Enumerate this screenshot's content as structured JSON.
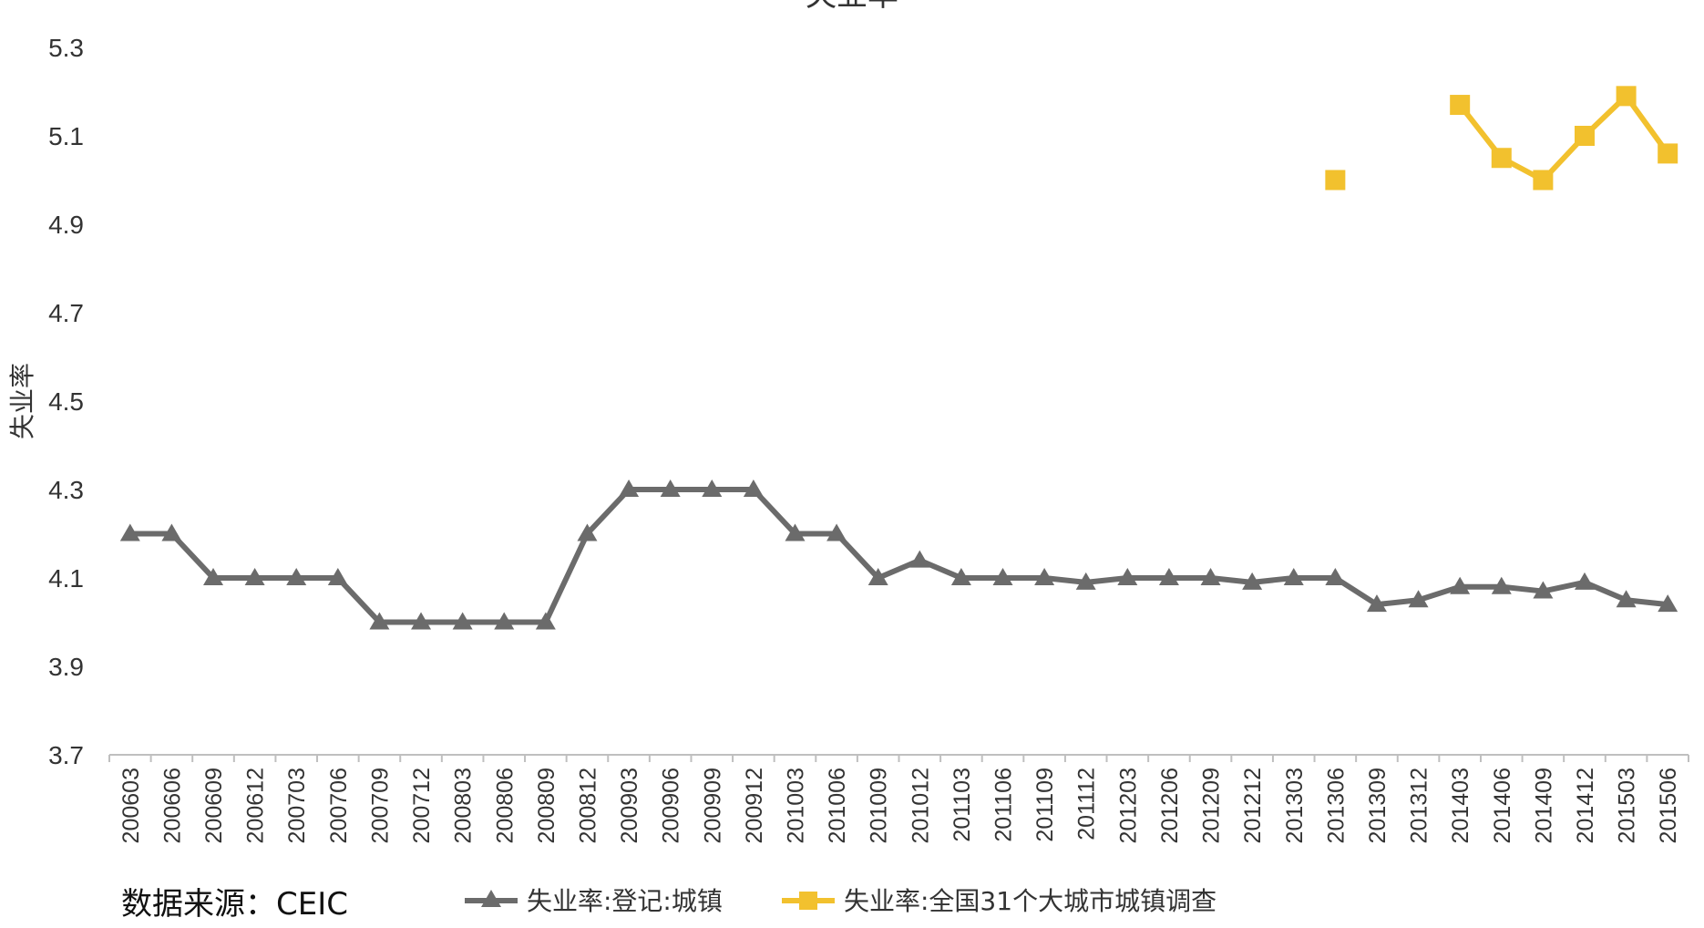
{
  "chart_data": {
    "type": "line",
    "title": "失业率",
    "ylabel": "失业率",
    "xlabel": "",
    "ylim": [
      3.7,
      5.3
    ],
    "yticks": [
      "3.7",
      "3.9",
      "4.1",
      "4.3",
      "4.5",
      "4.7",
      "4.9",
      "5.1",
      "5.3"
    ],
    "grid": false,
    "legend_position": "bottom",
    "categories": [
      "200603",
      "200606",
      "200609",
      "200612",
      "200703",
      "200706",
      "200709",
      "200712",
      "200803",
      "200806",
      "200809",
      "200812",
      "200903",
      "200906",
      "200909",
      "200912",
      "201003",
      "201006",
      "201009",
      "201012",
      "201103",
      "201106",
      "201109",
      "201112",
      "201203",
      "201206",
      "201209",
      "201212",
      "201303",
      "201306",
      "201309",
      "201312",
      "201403",
      "201406",
      "201409",
      "201412",
      "201503",
      "201506"
    ],
    "series": [
      {
        "name": "失业率:登记:城镇",
        "color": "#6b6b6b",
        "marker": "triangle",
        "values": [
          4.2,
          4.2,
          4.1,
          4.1,
          4.1,
          4.1,
          4.0,
          4.0,
          4.0,
          4.0,
          4.0,
          4.2,
          4.3,
          4.3,
          4.3,
          4.3,
          4.2,
          4.2,
          4.1,
          4.14,
          4.1,
          4.1,
          4.1,
          4.09,
          4.1,
          4.1,
          4.1,
          4.09,
          4.1,
          4.1,
          4.04,
          4.05,
          4.08,
          4.08,
          4.07,
          4.09,
          4.05,
          4.04
        ]
      },
      {
        "name": "失业率:全国31个大城市城镇调查",
        "color": "#f2c12e",
        "marker": "square",
        "values": [
          null,
          null,
          null,
          null,
          null,
          null,
          null,
          null,
          null,
          null,
          null,
          null,
          null,
          null,
          null,
          null,
          null,
          null,
          null,
          null,
          null,
          null,
          null,
          null,
          null,
          null,
          null,
          null,
          null,
          5.0,
          null,
          null,
          5.17,
          5.05,
          5.0,
          5.1,
          5.19,
          5.06
        ]
      }
    ],
    "annotations": [
      "数据来源：CEIC"
    ]
  }
}
